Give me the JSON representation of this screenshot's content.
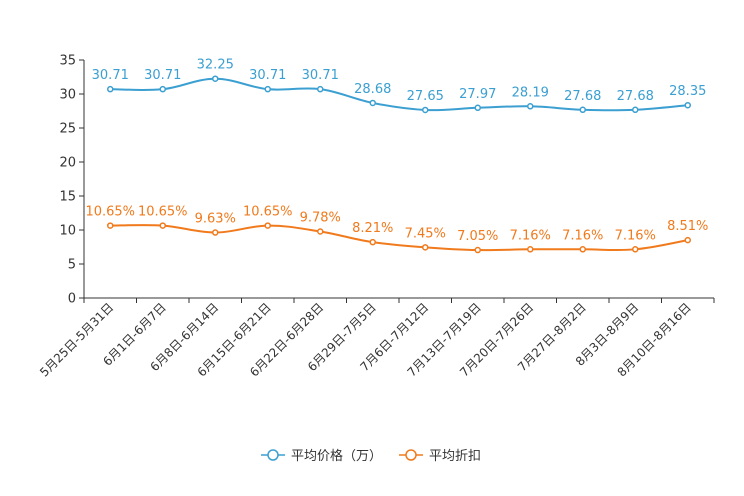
{
  "chart_data": {
    "type": "line",
    "title": "",
    "xlabel": "",
    "ylabel": "",
    "ylim": [
      0,
      35
    ],
    "yticks": [
      0,
      5,
      10,
      15,
      20,
      25,
      30,
      35
    ],
    "categories": [
      "5月25日-5月31日",
      "6月1日-6月7日",
      "6月8日-6月14日",
      "6月15日-6月21日",
      "6月22日-6月28日",
      "6月29日-7月5日",
      "7月6日-7月12日",
      "7月13日-7月19日",
      "7月20日-7月26日",
      "7月27日-8月2日",
      "8月3日-8月9日",
      "8月10日-8月16日"
    ],
    "series": [
      {
        "name": "平均价格（万）",
        "color": "#3b9fd1",
        "values": [
          30.71,
          30.71,
          32.25,
          30.71,
          30.71,
          28.68,
          27.65,
          27.97,
          28.19,
          27.68,
          27.68,
          28.35
        ],
        "labels": [
          "30.71",
          "30.71",
          "32.25",
          "30.71",
          "30.71",
          "28.68",
          "27.65",
          "27.97",
          "28.19",
          "27.68",
          "27.68",
          "28.35"
        ]
      },
      {
        "name": "平均折扣",
        "color": "#f07a1c",
        "values": [
          10.65,
          10.65,
          9.63,
          10.65,
          9.78,
          8.21,
          7.45,
          7.05,
          7.16,
          7.16,
          7.16,
          8.51
        ],
        "labels": [
          "10.65%",
          "10.65%",
          "9.63%",
          "10.65%",
          "9.78%",
          "8.21%",
          "7.45%",
          "7.05%",
          "7.16%",
          "7.16%",
          "7.16%",
          "8.51%"
        ]
      }
    ],
    "legend_position": "bottom-center",
    "grid": false
  }
}
